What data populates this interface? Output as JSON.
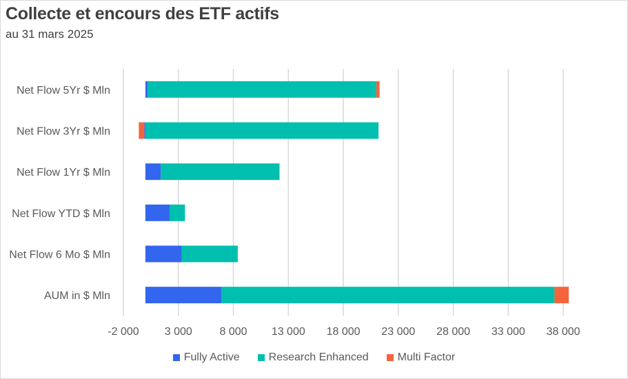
{
  "title": "Collecte et encours des ETF actifs",
  "subtitle": "au 31 mars 2025",
  "chart_data": {
    "type": "bar",
    "orientation": "horizontal",
    "stacked": true,
    "title": "Collecte et encours des ETF actifs",
    "subtitle": "au 31 mars 2025",
    "categories": [
      "Net Flow 5Yr $ Mln",
      "Net Flow 3Yr $ Mln",
      "Net Flow 1Yr $ Mln",
      "Net Flow YTD $ Mln",
      "Net Flow 6 Mo $ Mln",
      "AUM in $ Mln"
    ],
    "series": [
      {
        "name": "Fully Active",
        "color": "#3366ee",
        "values": [
          200,
          -100,
          1400,
          2200,
          3300,
          6900
        ]
      },
      {
        "name": "Research Enhanced",
        "color": "#00bfae",
        "values": [
          20800,
          21200,
          10800,
          1400,
          5100,
          30300
        ]
      },
      {
        "name": "Multi Factor",
        "color": "#f4643c",
        "values": [
          300,
          -500,
          0,
          0,
          0,
          1300
        ]
      }
    ],
    "xlim": [
      -2000,
      40000
    ],
    "xticks": [
      -2000,
      3000,
      8000,
      13000,
      18000,
      23000,
      28000,
      33000,
      38000
    ],
    "xtick_labels": [
      "-2 000",
      "3 000",
      "8 000",
      "13 000",
      "18 000",
      "23 000",
      "28 000",
      "33 000",
      "38 000"
    ],
    "xlabel": "",
    "ylabel": "",
    "grid": "vertical",
    "legend": "bottom"
  }
}
